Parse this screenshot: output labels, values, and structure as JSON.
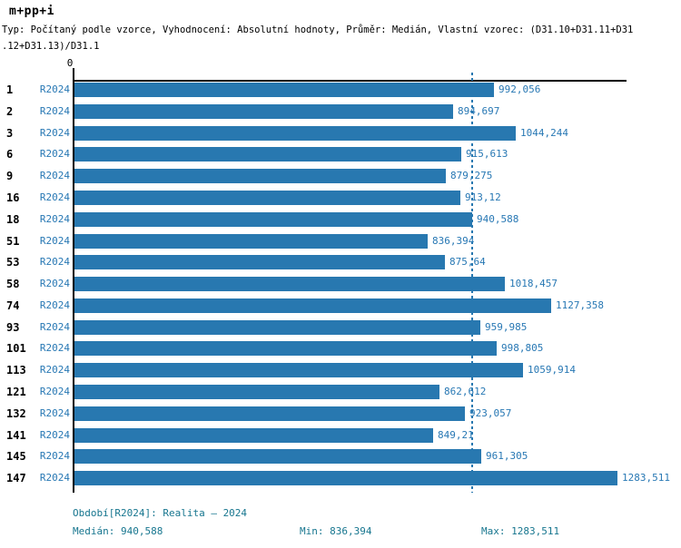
{
  "title": "m+pp+i",
  "subtitle": {
    "line1": "Typ: Počítaný podle vzorce, Vyhodnocení: Absolutní hodnoty, Průměr: Medián, Vlastní vzorec: (D31.10+D31.11+D31",
    "line2": ".12+D31.13)/D31.1"
  },
  "colors": {
    "bar": "#2878b0",
    "value_label": "#2878b4",
    "series_label": "#2878b4",
    "footer_text": "#17768f",
    "axis": "#000000"
  },
  "chart_data": {
    "type": "bar",
    "orientation": "horizontal",
    "title": "m+pp+i",
    "series_name": "R2024",
    "categories": [
      "1",
      "2",
      "3",
      "6",
      "9",
      "16",
      "18",
      "51",
      "53",
      "58",
      "74",
      "93",
      "101",
      "113",
      "121",
      "132",
      "141",
      "145",
      "147"
    ],
    "values": [
      992.056,
      894.697,
      1044.244,
      915.613,
      879.275,
      913.12,
      940.588,
      836.394,
      875.64,
      1018.457,
      1127.358,
      959.985,
      998.805,
      1059.914,
      862.612,
      923.057,
      849.21,
      961.305,
      1283.511
    ],
    "value_labels": [
      "992,056",
      "894,697",
      "1044,244",
      "915,613",
      "879,275",
      "913,12",
      "940,588",
      "836,394",
      "875,64",
      "1018,457",
      "1127,358",
      "959,985",
      "998,805",
      "1059,914",
      "862,612",
      "923,057",
      "849,21",
      "961,305",
      "1283,511"
    ],
    "x_axis": {
      "zero_label": "0",
      "min": 0,
      "max": 1305
    },
    "median": 940.588,
    "min": 836.394,
    "max": 1283.511,
    "median_line": true,
    "grid": false,
    "legend_position": "none"
  },
  "footer": {
    "period": "Období[R2024]: Realita – 2024",
    "median": "Medián: 940,588",
    "min": "Min: 836,394",
    "max": "Max: 1283,511"
  }
}
